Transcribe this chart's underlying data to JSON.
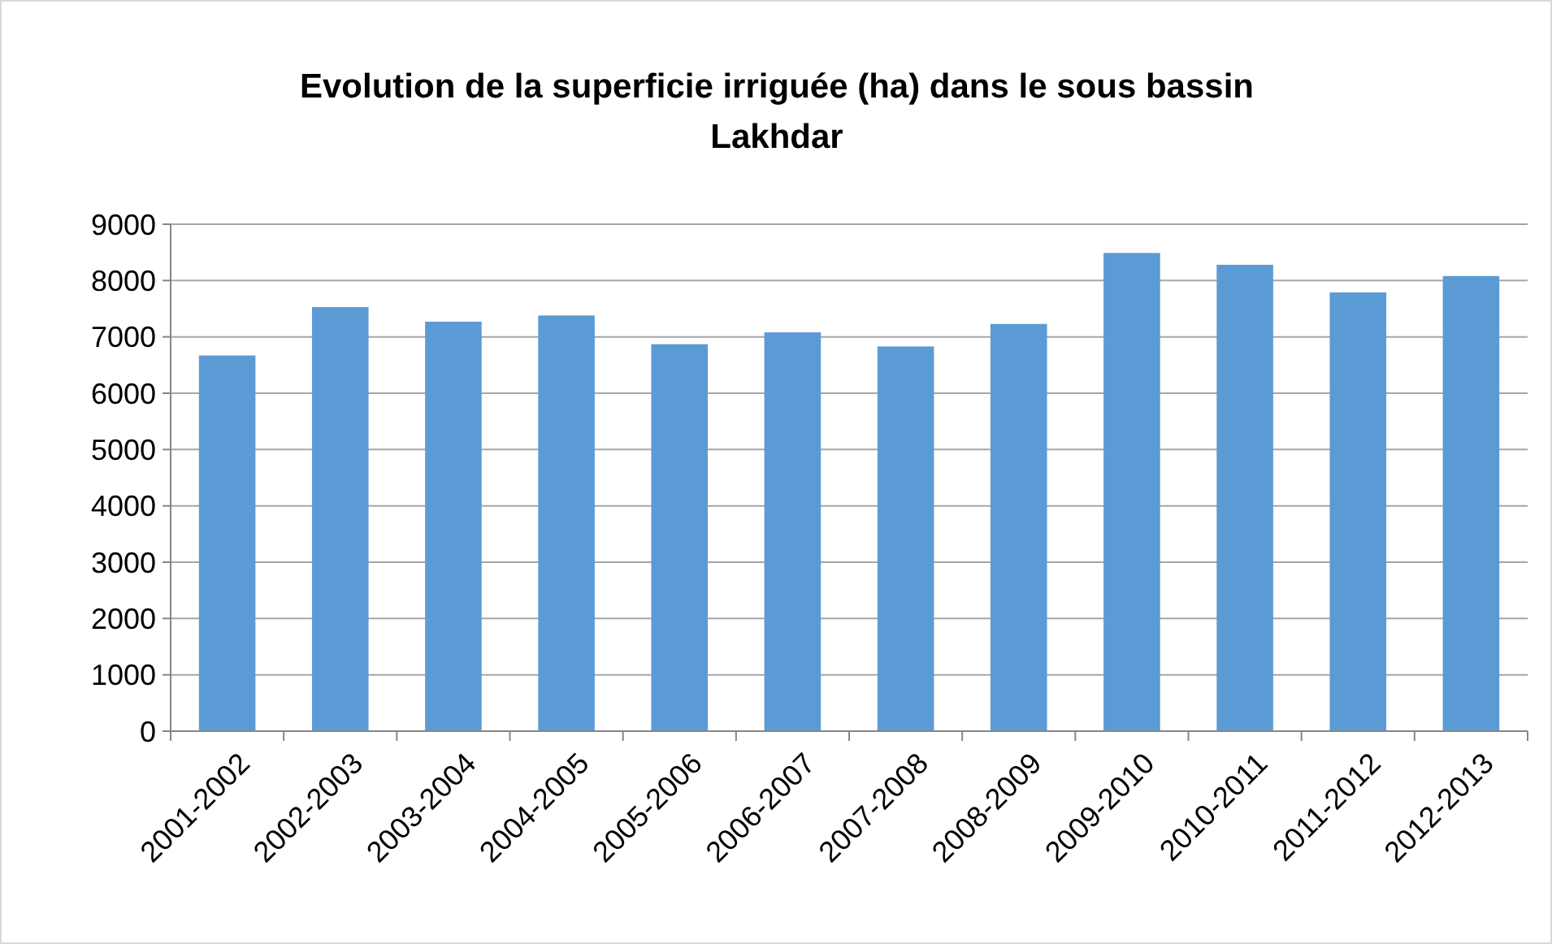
{
  "chart_data": {
    "type": "bar",
    "title": "Evolution de la superficie irriguée (ha) dans le sous bassin Lakhdar",
    "categories": [
      "2001-2002",
      "2002-2003",
      "2003-2004",
      "2004-2005",
      "2005-2006",
      "2006-2007",
      "2007-2008",
      "2008-2009",
      "2009-2010",
      "2010-2011",
      "2011-2012",
      "2012-2013"
    ],
    "values": [
      6670,
      7530,
      7270,
      7380,
      6870,
      7080,
      6830,
      7230,
      8490,
      8280,
      7790,
      8080
    ],
    "color": "#5b9bd5",
    "ylim": [
      0,
      9000
    ],
    "yticks": [
      0,
      1000,
      2000,
      3000,
      4000,
      5000,
      6000,
      7000,
      8000,
      9000
    ],
    "grid": "y"
  }
}
